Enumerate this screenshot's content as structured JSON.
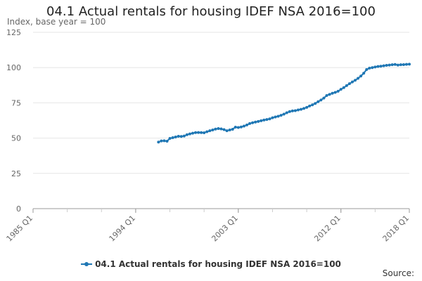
{
  "chart_data": {
    "type": "line",
    "title": "04.1 Actual rentals for housing IDEF NSA 2016=100",
    "subtitle": "Index, base year = 100",
    "xlabel": "",
    "ylabel": "",
    "x_ticks": [
      "1985 Q1",
      "1994 Q1",
      "2003 Q1",
      "2012 Q1",
      "2018 Q1"
    ],
    "y_ticks": [
      0,
      25,
      50,
      75,
      100,
      125
    ],
    "ylim": [
      0,
      125
    ],
    "xlim": [
      "1985 Q1",
      "2018 Q1"
    ],
    "grid": true,
    "legend_position": "bottom",
    "source_label": "Source:",
    "series": [
      {
        "name": "04.1 Actual rentals for housing IDEF NSA 2016=100",
        "color": "#1f77b4",
        "x": [
          "1996 Q1",
          "1996 Q2",
          "1996 Q3",
          "1996 Q4",
          "1997 Q1",
          "1997 Q2",
          "1997 Q3",
          "1997 Q4",
          "1998 Q1",
          "1998 Q2",
          "1998 Q3",
          "1998 Q4",
          "1999 Q1",
          "1999 Q2",
          "1999 Q3",
          "1999 Q4",
          "2000 Q1",
          "2000 Q2",
          "2000 Q3",
          "2000 Q4",
          "2001 Q1",
          "2001 Q2",
          "2001 Q3",
          "2001 Q4",
          "2002 Q1",
          "2002 Q2",
          "2002 Q3",
          "2002 Q4",
          "2003 Q1",
          "2003 Q2",
          "2003 Q3",
          "2003 Q4",
          "2004 Q1",
          "2004 Q2",
          "2004 Q3",
          "2004 Q4",
          "2005 Q1",
          "2005 Q2",
          "2005 Q3",
          "2005 Q4",
          "2006 Q1",
          "2006 Q2",
          "2006 Q3",
          "2006 Q4",
          "2007 Q1",
          "2007 Q2",
          "2007 Q3",
          "2007 Q4",
          "2008 Q1",
          "2008 Q2",
          "2008 Q3",
          "2008 Q4",
          "2009 Q1",
          "2009 Q2",
          "2009 Q3",
          "2009 Q4",
          "2010 Q1",
          "2010 Q2",
          "2010 Q3",
          "2010 Q4",
          "2011 Q1",
          "2011 Q2",
          "2011 Q3",
          "2011 Q4",
          "2012 Q1",
          "2012 Q2",
          "2012 Q3",
          "2012 Q4",
          "2013 Q1",
          "2013 Q2",
          "2013 Q3",
          "2013 Q4",
          "2014 Q1",
          "2014 Q2",
          "2014 Q3",
          "2014 Q4",
          "2015 Q1",
          "2015 Q2",
          "2015 Q3",
          "2015 Q4",
          "2016 Q1",
          "2016 Q2",
          "2016 Q3",
          "2016 Q4",
          "2017 Q1",
          "2017 Q2",
          "2017 Q3",
          "2017 Q4",
          "2018 Q1"
        ],
        "values": [
          47.2,
          48.0,
          48.1,
          47.8,
          49.8,
          50.3,
          50.8,
          51.3,
          51.2,
          51.5,
          52.4,
          53.0,
          53.5,
          53.9,
          54.0,
          53.9,
          53.8,
          54.5,
          55.2,
          55.8,
          56.4,
          56.8,
          56.5,
          56.0,
          55.2,
          55.8,
          56.3,
          57.8,
          57.5,
          57.9,
          58.5,
          59.3,
          60.3,
          60.9,
          61.4,
          61.8,
          62.3,
          62.8,
          63.2,
          63.6,
          64.4,
          65.0,
          65.5,
          66.2,
          67.0,
          68.0,
          68.8,
          69.3,
          69.5,
          70.0,
          70.4,
          71.0,
          71.8,
          72.8,
          73.6,
          74.6,
          75.8,
          77.0,
          78.4,
          80.2,
          81.0,
          81.8,
          82.4,
          83.2,
          84.6,
          85.8,
          87.2,
          88.6,
          89.8,
          91.0,
          92.4,
          94.0,
          96.0,
          98.6,
          99.6,
          100.0,
          100.4,
          100.8,
          101.0,
          101.3,
          101.6,
          101.8,
          102.0,
          102.2,
          101.8,
          102.0,
          102.1,
          102.3,
          102.4
        ]
      }
    ]
  }
}
